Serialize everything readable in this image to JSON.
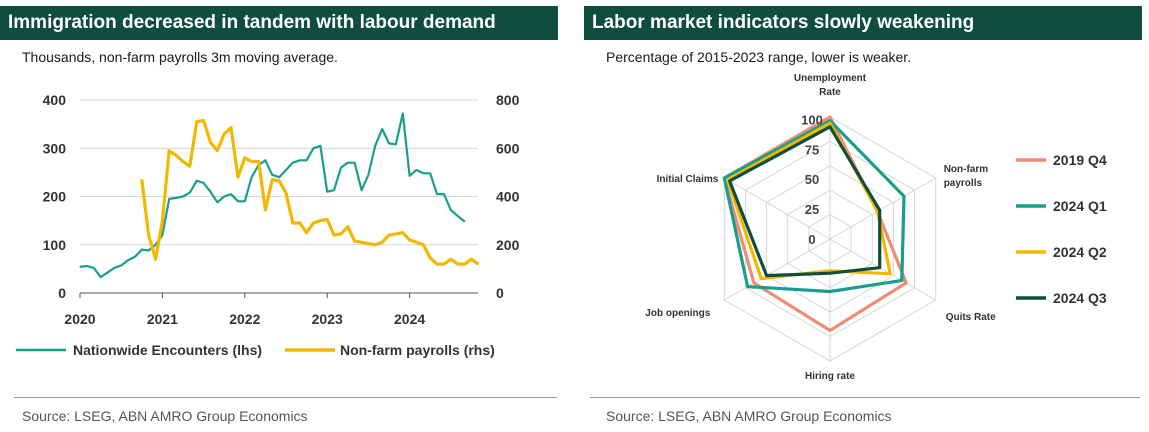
{
  "left_panel": {
    "title": "Immigration decreased in tandem with labour demand",
    "subtitle": "Thousands, non-farm payrolls 3m moving average.",
    "source": "Source:  LSEG, ABN AMRO Group Economics"
  },
  "right_panel": {
    "title": "Labor market indicators slowly weakening",
    "subtitle": "Percentage of 2015-2023 range, lower is weaker.",
    "source": "Source:  LSEG, ABN AMRO Group Economics"
  },
  "colors": {
    "title_bg": "#0f4d3f",
    "teal": "#1a9e8c",
    "yellow": "#f2b800",
    "salmon": "#f08c76",
    "dark_green": "#0f4d3f",
    "grid": "#d6d6d6"
  },
  "chart_data": [
    {
      "type": "line",
      "title": "Immigration decreased in tandem with labour demand",
      "xlabel": "",
      "x_ticks": [
        "2020",
        "2021",
        "2022",
        "2023",
        "2024"
      ],
      "x_tick_values": [
        2020,
        2021,
        2022,
        2023,
        2024
      ],
      "xlim": [
        2020,
        2024.83
      ],
      "y_left": {
        "label": "lhs",
        "ylim": [
          0,
          400
        ],
        "ticks": [
          "0",
          "100",
          "200",
          "300",
          "400"
        ]
      },
      "y_right": {
        "label": "rhs",
        "ylim": [
          0,
          800
        ],
        "ticks": [
          "0",
          "200",
          "400",
          "600",
          "800"
        ]
      },
      "legend_position": "bottom",
      "series": [
        {
          "name": "Nationwide Encounters (lhs)",
          "axis": "left",
          "color": "#1a9e8c",
          "x": [
            2020.0,
            2020.083,
            2020.167,
            2020.25,
            2020.333,
            2020.417,
            2020.5,
            2020.583,
            2020.667,
            2020.75,
            2020.833,
            2020.917,
            2021.0,
            2021.083,
            2021.167,
            2021.25,
            2021.333,
            2021.417,
            2021.5,
            2021.583,
            2021.667,
            2021.75,
            2021.833,
            2021.917,
            2022.0,
            2022.083,
            2022.167,
            2022.25,
            2022.333,
            2022.417,
            2022.5,
            2022.583,
            2022.667,
            2022.75,
            2022.833,
            2022.917,
            2023.0,
            2023.083,
            2023.167,
            2023.25,
            2023.333,
            2023.417,
            2023.5,
            2023.583,
            2023.667,
            2023.75,
            2023.833,
            2023.917,
            2024.0,
            2024.083,
            2024.167,
            2024.25,
            2024.333,
            2024.417,
            2024.5,
            2024.583,
            2024.667
          ],
          "values": [
            54,
            56,
            52,
            33,
            42,
            52,
            57,
            68,
            75,
            90,
            88,
            100,
            120,
            195,
            197,
            200,
            208,
            233,
            228,
            210,
            188,
            200,
            205,
            190,
            190,
            240,
            265,
            275,
            245,
            240,
            255,
            270,
            275,
            275,
            300,
            305,
            210,
            213,
            260,
            270,
            270,
            213,
            245,
            305,
            340,
            310,
            308,
            372,
            243,
            255,
            248,
            248,
            205,
            205,
            172,
            160,
            148
          ]
        },
        {
          "name": "Non-farm payrolls (rhs)",
          "axis": "right",
          "color": "#f2b800",
          "x": [
            2020.75,
            2020.833,
            2020.917,
            2021.0,
            2021.083,
            2021.167,
            2021.25,
            2021.333,
            2021.417,
            2021.5,
            2021.583,
            2021.667,
            2021.75,
            2021.833,
            2021.917,
            2022.0,
            2022.083,
            2022.167,
            2022.25,
            2022.333,
            2022.417,
            2022.5,
            2022.583,
            2022.667,
            2022.75,
            2022.833,
            2022.917,
            2023.0,
            2023.083,
            2023.167,
            2023.25,
            2023.333,
            2023.417,
            2023.5,
            2023.583,
            2023.667,
            2023.75,
            2023.833,
            2023.917,
            2024.0,
            2024.083,
            2024.167,
            2024.25,
            2024.333,
            2024.417,
            2024.5,
            2024.583,
            2024.667,
            2024.75,
            2024.833
          ],
          "values": [
            470,
            240,
            140,
            300,
            590,
            570,
            545,
            525,
            710,
            715,
            625,
            590,
            660,
            685,
            480,
            560,
            545,
            545,
            345,
            470,
            465,
            415,
            290,
            290,
            250,
            290,
            300,
            305,
            240,
            245,
            275,
            215,
            210,
            205,
            200,
            210,
            240,
            245,
            250,
            220,
            210,
            200,
            145,
            120,
            120,
            140,
            120,
            120,
            140,
            120
          ]
        }
      ]
    },
    {
      "type": "radar",
      "title": "Labor market indicators slowly weakening",
      "axes": [
        "Unemployment Rate",
        "Non-farm payrolls",
        "Quits Rate",
        "Hiring rate",
        "Job openings",
        "Initial Claims"
      ],
      "range": [
        0,
        100
      ],
      "ticks": [
        "0",
        "25",
        "50",
        "75",
        "100"
      ],
      "legend_position": "right",
      "series": [
        {
          "name": "2019 Q4",
          "color": "#f08c76",
          "values": [
            100,
            45,
            72,
            75,
            72,
            100
          ]
        },
        {
          "name": "2024 Q1",
          "color": "#1a9e8c",
          "values": [
            97,
            70,
            68,
            43,
            78,
            100
          ]
        },
        {
          "name": "2024 Q2",
          "color": "#f2b800",
          "values": [
            95,
            45,
            57,
            26,
            65,
            97
          ]
        },
        {
          "name": "2024 Q3",
          "color": "#0f4d3f",
          "values": [
            92,
            47,
            47,
            28,
            60,
            95
          ]
        }
      ]
    }
  ]
}
